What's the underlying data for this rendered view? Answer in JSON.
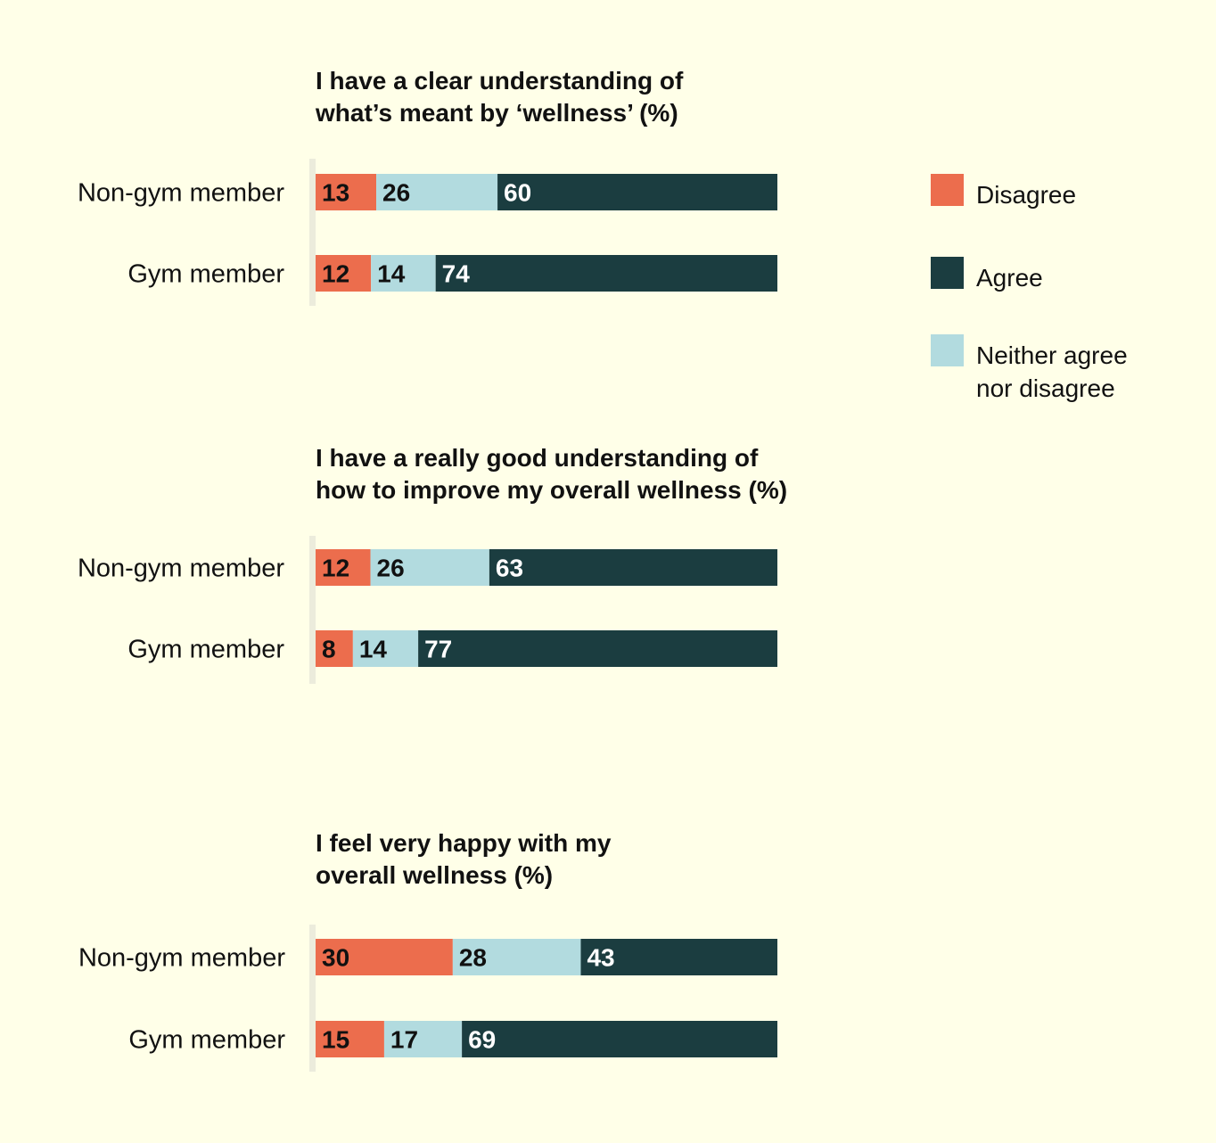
{
  "chart_data": [
    {
      "type": "bar",
      "orientation": "horizontal",
      "stacked": true,
      "title": [
        "I have a clear understanding of",
        "what’s meant by ‘wellness’ (%)"
      ],
      "categories": [
        "Non-gym member",
        "Gym member"
      ],
      "series": [
        {
          "name": "Disagree",
          "values": [
            13,
            12
          ]
        },
        {
          "name": "Neither agree nor disagree",
          "values": [
            26,
            14
          ]
        },
        {
          "name": "Agree",
          "values": [
            60,
            74
          ]
        }
      ]
    },
    {
      "type": "bar",
      "orientation": "horizontal",
      "stacked": true,
      "title": [
        "I have a really good understanding of",
        "how to improve my overall wellness (%)"
      ],
      "categories": [
        "Non-gym member",
        "Gym member"
      ],
      "series": [
        {
          "name": "Disagree",
          "values": [
            12,
            8
          ]
        },
        {
          "name": "Neither agree nor disagree",
          "values": [
            26,
            14
          ]
        },
        {
          "name": "Agree",
          "values": [
            63,
            77
          ]
        }
      ]
    },
    {
      "type": "bar",
      "orientation": "horizontal",
      "stacked": true,
      "title": [
        "I feel very happy with my",
        "overall wellness (%)"
      ],
      "categories": [
        "Non-gym member",
        "Gym member"
      ],
      "series": [
        {
          "name": "Disagree",
          "values": [
            30,
            15
          ]
        },
        {
          "name": "Neither agree nor disagree",
          "values": [
            28,
            17
          ]
        },
        {
          "name": "Agree",
          "values": [
            43,
            69
          ]
        }
      ]
    }
  ],
  "legend": {
    "position": "top-right",
    "items": [
      {
        "name": "Disagree",
        "lines": [
          "Disagree"
        ],
        "color": "#EC6D4D"
      },
      {
        "name": "Agree",
        "lines": [
          "Agree"
        ],
        "color": "#1B3D40"
      },
      {
        "name": "Neither agree nor disagree",
        "lines": [
          "Neither agree",
          "nor disagree"
        ],
        "color": "#B2DBDF"
      }
    ]
  },
  "colors": {
    "Disagree": "#EC6D4D",
    "Neither agree nor disagree": "#B2DBDF",
    "Agree": "#1B3D40",
    "axis": "#ECECDC",
    "background": "#FFFFE8"
  }
}
